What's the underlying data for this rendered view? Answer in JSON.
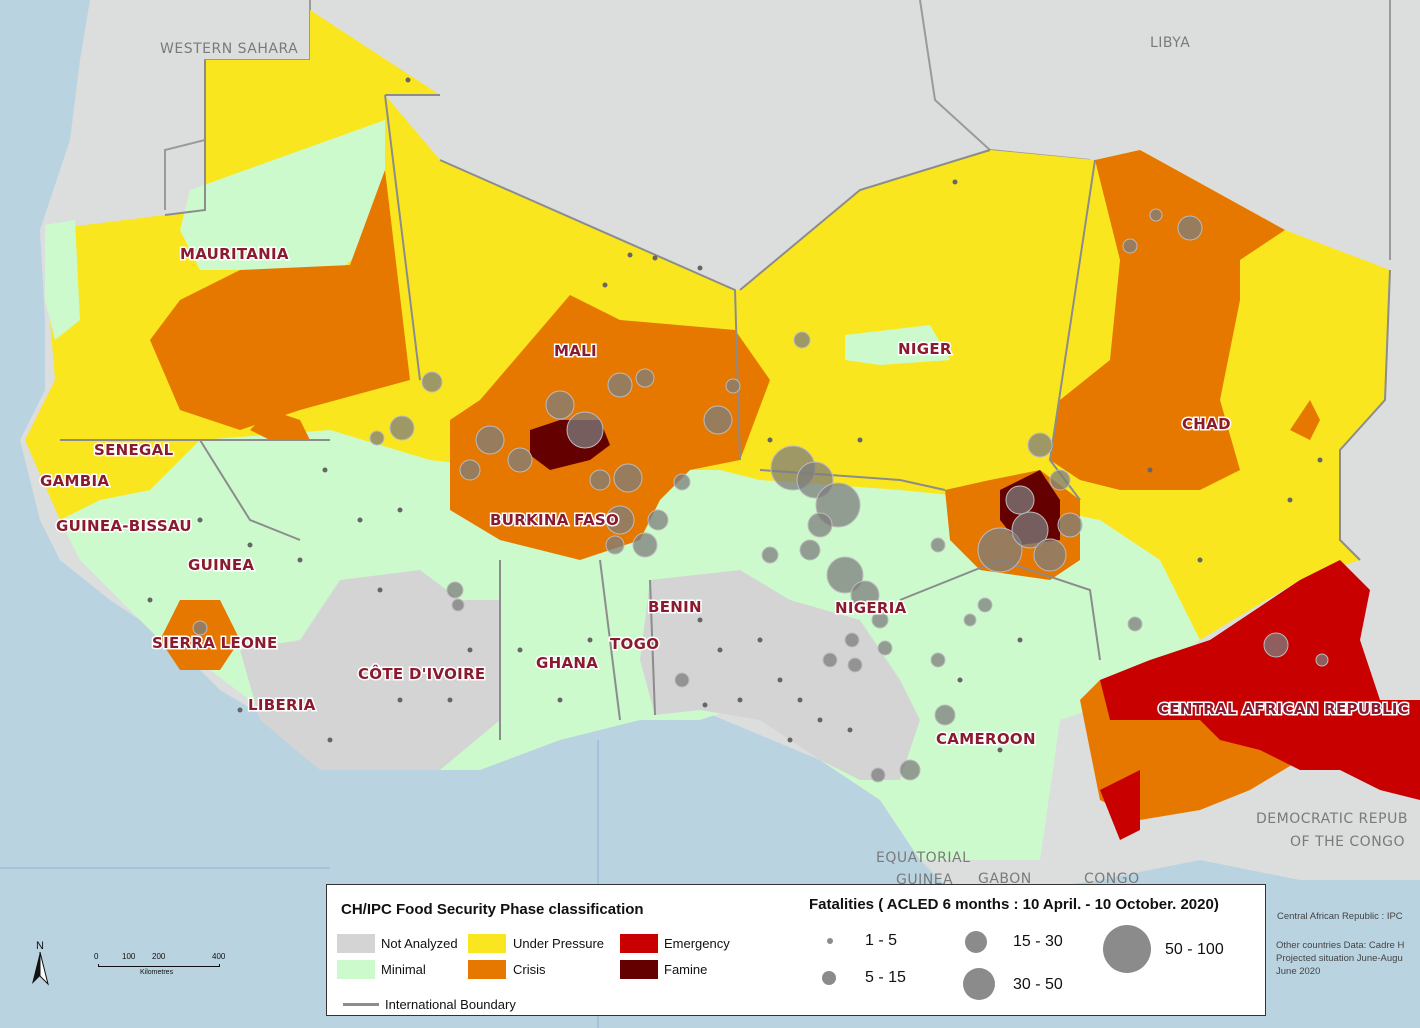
{
  "map": {
    "countries": [
      {
        "id": "mauritania",
        "label": "MAURITANIA"
      },
      {
        "id": "mali",
        "label": "MALI"
      },
      {
        "id": "niger",
        "label": "NIGER"
      },
      {
        "id": "chad",
        "label": "CHAD"
      },
      {
        "id": "senegal",
        "label": "SENEGAL"
      },
      {
        "id": "gambia",
        "label": "GAMBIA"
      },
      {
        "id": "guinea-bissau",
        "label": "GUINEA-BISSAU"
      },
      {
        "id": "guinea",
        "label": "GUINEA"
      },
      {
        "id": "sierra-leone",
        "label": "SIERRA LEONE"
      },
      {
        "id": "liberia",
        "label": "LIBERIA"
      },
      {
        "id": "cote-divoire",
        "label": "CÔTE D'IVOIRE"
      },
      {
        "id": "burkina-faso",
        "label": "BURKINA FASO"
      },
      {
        "id": "ghana",
        "label": "GHANA"
      },
      {
        "id": "togo",
        "label": "TOGO"
      },
      {
        "id": "benin",
        "label": "BENIN"
      },
      {
        "id": "nigeria",
        "label": "NIGERIA"
      },
      {
        "id": "cameroon",
        "label": "CAMEROON"
      },
      {
        "id": "car",
        "label": "CENTRAL AFRICAN REPUBLIC"
      }
    ],
    "neighbors": [
      {
        "id": "western-sahara",
        "label": "WESTERN SAHARA"
      },
      {
        "id": "libya",
        "label": "LIBYA"
      },
      {
        "id": "drc-1",
        "label": "DEMOCRATIC REPUB"
      },
      {
        "id": "drc-2",
        "label": "OF THE CONGO"
      },
      {
        "id": "eq-guinea-1",
        "label": "EQUATORIAL"
      },
      {
        "id": "eq-guinea-2",
        "label": "GUINEA"
      },
      {
        "id": "gabon",
        "label": "GABON"
      },
      {
        "id": "congo",
        "label": "CONGO"
      }
    ]
  },
  "legend": {
    "phase_title": "CH/IPC Food Security Phase classification",
    "phases": [
      {
        "label": "Not Analyzed",
        "color": "#d4d4d4"
      },
      {
        "label": "Minimal",
        "color": "#cdfacd"
      },
      {
        "label": "Under Pressure",
        "color": "#fae61e"
      },
      {
        "label": "Crisis",
        "color": "#e67800"
      },
      {
        "label": "Emergency",
        "color": "#c80000"
      },
      {
        "label": "Famine",
        "color": "#640000"
      }
    ],
    "boundary_label": "International Boundary",
    "fatalities_title": "Fatalities ( ACLED 6 months : 10 April. -  10 October. 2020)",
    "fatalities": [
      {
        "label": "1 - 5"
      },
      {
        "label": "5 - 15"
      },
      {
        "label": "15 - 30"
      },
      {
        "label": "30 - 50"
      },
      {
        "label": "50 - 100"
      }
    ]
  },
  "side_notes": {
    "line1": "Central African Republic : IPC",
    "line2": "Other countries Data: Cadre H",
    "line3": "Projected situation June-Augu",
    "line4": "June 2020"
  },
  "scale": {
    "ticks": [
      "0",
      "100",
      "200",
      "400"
    ],
    "unit": "Kilometres"
  },
  "north_label": "N",
  "colors": {
    "ocean": "#b9d3e0",
    "land": "#dcdede",
    "not_analyzed": "#d4d4d4",
    "minimal": "#cdfacd",
    "under_pressure": "#fae61e",
    "crisis": "#e67800",
    "emergency": "#c80000",
    "famine": "#640000",
    "event": "#7d7d7d"
  }
}
